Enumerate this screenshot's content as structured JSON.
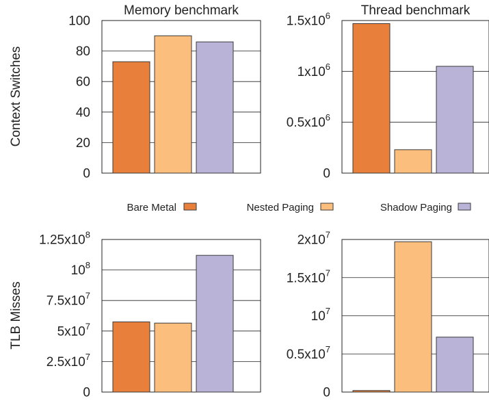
{
  "colors": {
    "Bare Metal": "#e8803c",
    "Nested Paging": "#fbbe7d",
    "Shadow Paging": "#b9b3d8",
    "bar_stroke": "#3a3a3a",
    "grid": "#222222"
  },
  "legend": {
    "placement": "center",
    "entries": [
      "Bare Metal",
      "Nested Paging",
      "Shadow Paging"
    ]
  },
  "row_labels": [
    "Context Switches",
    "TLB Misses"
  ],
  "chart_data": [
    {
      "type": "bar",
      "title": "Memory benchmark",
      "ylabel": "Context Switches",
      "categories": [
        "Bare Metal",
        "Nested Paging",
        "Shadow Paging"
      ],
      "values": [
        73,
        90,
        86
      ],
      "ylim": [
        0,
        100
      ],
      "yticks": [
        0,
        20,
        40,
        60,
        80,
        100
      ],
      "ytick_labels": [
        {
          "base": "0",
          "sup": ""
        },
        {
          "base": "20",
          "sup": ""
        },
        {
          "base": "40",
          "sup": ""
        },
        {
          "base": "60",
          "sup": ""
        },
        {
          "base": "80",
          "sup": ""
        },
        {
          "base": "100",
          "sup": ""
        }
      ],
      "grid": true
    },
    {
      "type": "bar",
      "title": "Thread benchmark",
      "ylabel": "",
      "categories": [
        "Bare Metal",
        "Nested Paging",
        "Shadow Paging"
      ],
      "values": [
        1470000,
        230000,
        1050000
      ],
      "ylim": [
        0,
        1500000
      ],
      "yticks": [
        0,
        500000,
        1000000,
        1500000
      ],
      "ytick_labels": [
        {
          "base": "0",
          "sup": ""
        },
        {
          "base": "0.5x10",
          "sup": "6"
        },
        {
          "base": "1x10",
          "sup": "6"
        },
        {
          "base": "1.5x10",
          "sup": "6"
        }
      ],
      "grid": true
    },
    {
      "type": "bar",
      "title": "",
      "ylabel": "TLB Misses",
      "categories": [
        "Bare Metal",
        "Nested Paging",
        "Shadow Paging"
      ],
      "values": [
        57500000,
        56500000,
        112000000
      ],
      "ylim": [
        0,
        125000000
      ],
      "yticks": [
        0,
        25000000,
        50000000,
        75000000,
        100000000,
        125000000
      ],
      "ytick_labels": [
        {
          "base": "0",
          "sup": ""
        },
        {
          "base": "2.5x10",
          "sup": "7"
        },
        {
          "base": "5x10",
          "sup": "7"
        },
        {
          "base": "7.5x10",
          "sup": "7"
        },
        {
          "base": "10",
          "sup": "8"
        },
        {
          "base": "1.25x10",
          "sup": "8"
        }
      ],
      "grid": true
    },
    {
      "type": "bar",
      "title": "",
      "ylabel": "",
      "categories": [
        "Bare Metal",
        "Nested Paging",
        "Shadow Paging"
      ],
      "values": [
        200000,
        19700000,
        7200000
      ],
      "ylim": [
        0,
        20000000
      ],
      "yticks": [
        0,
        5000000,
        10000000,
        15000000,
        20000000
      ],
      "ytick_labels": [
        {
          "base": "0",
          "sup": ""
        },
        {
          "base": "0.5x10",
          "sup": "7"
        },
        {
          "base": "10",
          "sup": "7"
        },
        {
          "base": "1.5x10",
          "sup": "7"
        },
        {
          "base": "2x10",
          "sup": "7"
        }
      ],
      "grid": true
    }
  ]
}
